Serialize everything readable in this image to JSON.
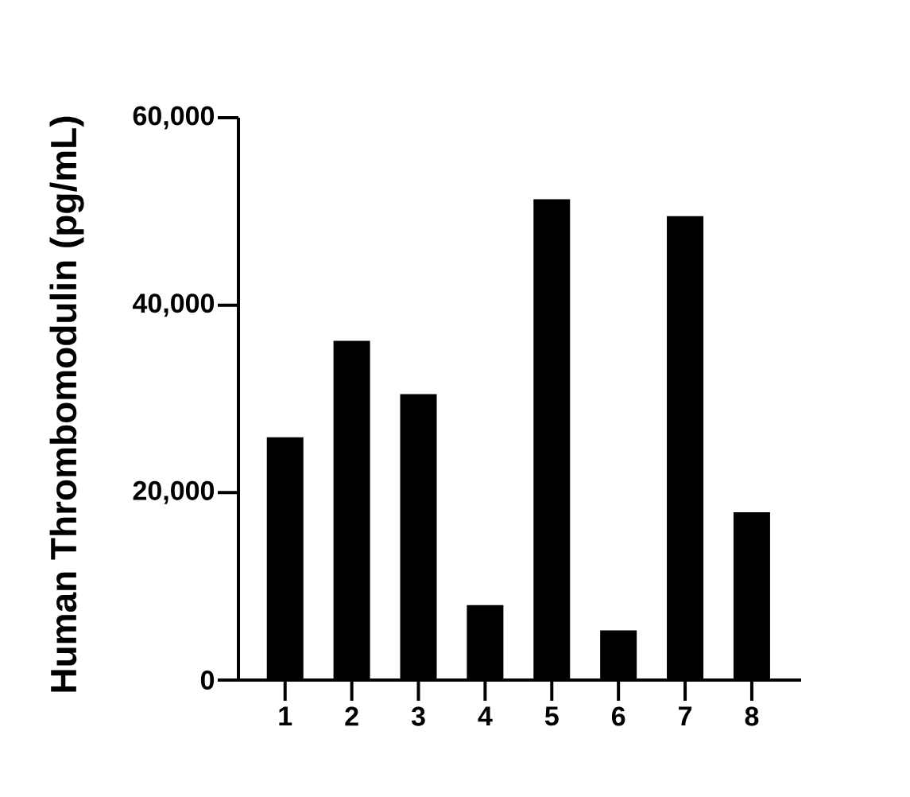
{
  "chart_data": {
    "type": "bar",
    "ylabel": "Human Thrombomodulin (pg/mL)",
    "categories": [
      "1",
      "2",
      "3",
      "4",
      "5",
      "6",
      "7",
      "8"
    ],
    "values": [
      25900,
      36200,
      30500,
      8000,
      51300,
      5300,
      49500,
      17900
    ],
    "color": "#000000",
    "ylim": [
      0,
      60000
    ],
    "yticks": [
      0,
      {
        "value": 20000,
        "label": "20,000"
      },
      {
        "value": 40000,
        "label": "40,000"
      },
      {
        "value": 60000,
        "label": "60,000"
      }
    ]
  }
}
